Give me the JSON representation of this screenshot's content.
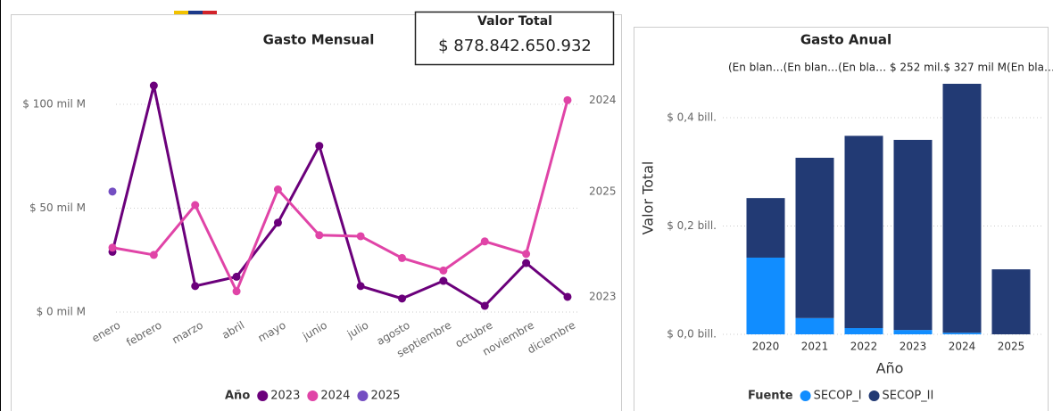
{
  "card": {
    "title": "Valor Total",
    "value": "$ 878.842.650.932"
  },
  "chart_data": [
    {
      "type": "line",
      "title": "Gasto Mensual",
      "categories": [
        "enero",
        "febrero",
        "marzo",
        "abril",
        "mayo",
        "junio",
        "julio",
        "agosto",
        "septiembre",
        "octubre",
        "noviembre",
        "diciembre"
      ],
      "series": [
        {
          "name": "2023",
          "color": "#6b007b",
          "values": [
            29,
            109,
            12.5,
            17,
            43,
            80,
            12.5,
            6.5,
            15,
            3,
            23.6,
            7.3
          ]
        },
        {
          "name": "2024",
          "color": "#e044a7",
          "values": [
            31,
            27.5,
            51.5,
            10,
            59,
            37,
            36.5,
            26,
            20,
            34,
            28,
            102
          ]
        },
        {
          "name": "2025",
          "color": "#744ec2",
          "values": [
            58,
            null,
            null,
            null,
            null,
            null,
            null,
            null,
            null,
            null,
            null,
            null
          ]
        }
      ],
      "ylim": [
        0,
        110
      ],
      "yticks": [
        {
          "value": 0,
          "label": "$ 0 mil M"
        },
        {
          "value": 50,
          "label": "$ 50 mil M"
        },
        {
          "value": 100,
          "label": "$ 100 mil M"
        }
      ],
      "grid": true,
      "legend_title": "Año",
      "legend": "bottom"
    },
    {
      "type": "stacked_bar",
      "title": "Gasto Anual",
      "subtitle": "(En blan…(En blan…(En bla… $ 252 mil.$ 327 mil M(En bla…",
      "x_label": "Año",
      "y_label": "Valor Total",
      "categories": [
        "2020",
        "2021",
        "2022",
        "2023",
        "2024",
        "2025"
      ],
      "series": [
        {
          "name": "SECOP_I",
          "color": "#118dff",
          "values": [
            0.1416,
            0.03,
            0.0115,
            0.008,
            0.003,
            0
          ]
        },
        {
          "name": "SECOP_II",
          "color": "#223a74",
          "values": [
            0.11,
            0.296,
            0.355,
            0.351,
            0.4596,
            0.12
          ]
        }
      ],
      "ylim": [
        0,
        0.47
      ],
      "yticks": [
        {
          "value": 0,
          "label": "$ 0,0 bill."
        },
        {
          "value": 0.2,
          "label": "$ 0,2 bill."
        },
        {
          "value": 0.4,
          "label": "$ 0,4 bill."
        }
      ],
      "grid": true,
      "legend_title": "Fuente",
      "legend": "bottom"
    }
  ]
}
